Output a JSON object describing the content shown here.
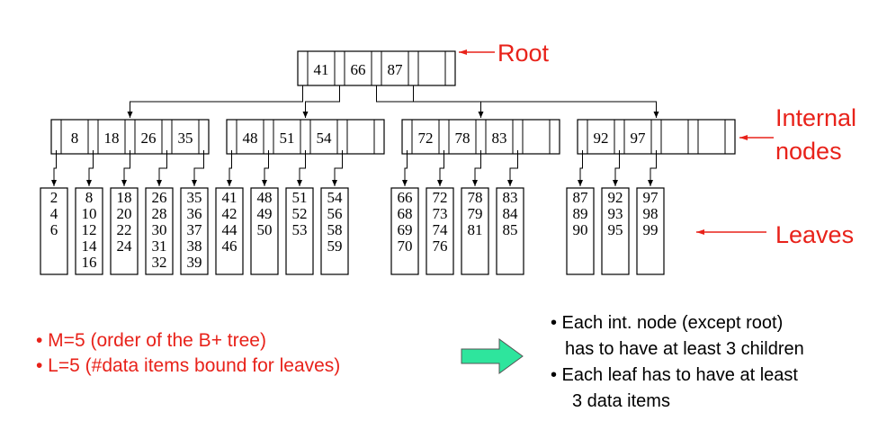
{
  "diagram": {
    "root": {
      "keys": [
        "41",
        "66",
        "87"
      ]
    },
    "internal_nodes": [
      {
        "keys": [
          "8",
          "18",
          "26",
          "35"
        ]
      },
      {
        "keys": [
          "48",
          "51",
          "54"
        ]
      },
      {
        "keys": [
          "72",
          "78",
          "83"
        ]
      },
      {
        "keys": [
          "92",
          "97"
        ]
      }
    ],
    "leaves": [
      [
        "2",
        "4",
        "6"
      ],
      [
        "8",
        "10",
        "12",
        "14",
        "16"
      ],
      [
        "18",
        "20",
        "22",
        "24"
      ],
      [
        "26",
        "28",
        "30",
        "31",
        "32"
      ],
      [
        "35",
        "36",
        "37",
        "38",
        "39"
      ],
      [
        "41",
        "42",
        "44",
        "46"
      ],
      [
        "48",
        "49",
        "50"
      ],
      [
        "51",
        "52",
        "53"
      ],
      [
        "54",
        "56",
        "58",
        "59"
      ],
      [
        "66",
        "68",
        "69",
        "70"
      ],
      [
        "72",
        "73",
        "74",
        "76"
      ],
      [
        "78",
        "79",
        "81"
      ],
      [
        "83",
        "84",
        "85"
      ],
      [
        "87",
        "89",
        "90"
      ],
      [
        "92",
        "93",
        "95"
      ],
      [
        "97",
        "98",
        "99"
      ]
    ],
    "labels": {
      "root": "Root",
      "internal_line1": "Internal",
      "internal_line2": "nodes",
      "leaves": "Leaves"
    },
    "label_color": "#e8221a",
    "arrow_color": "#2ee59d"
  },
  "notes_left": {
    "line1": "• M=5 (order of the B+ tree)",
    "line2": "• L=5 (#data items bound for leaves)"
  },
  "notes_right": {
    "line1": "• Each int. node (except root)",
    "line2": "has to have at least 3 children",
    "line3": "• Each leaf has to have at least",
    "line4": "3 data items"
  }
}
